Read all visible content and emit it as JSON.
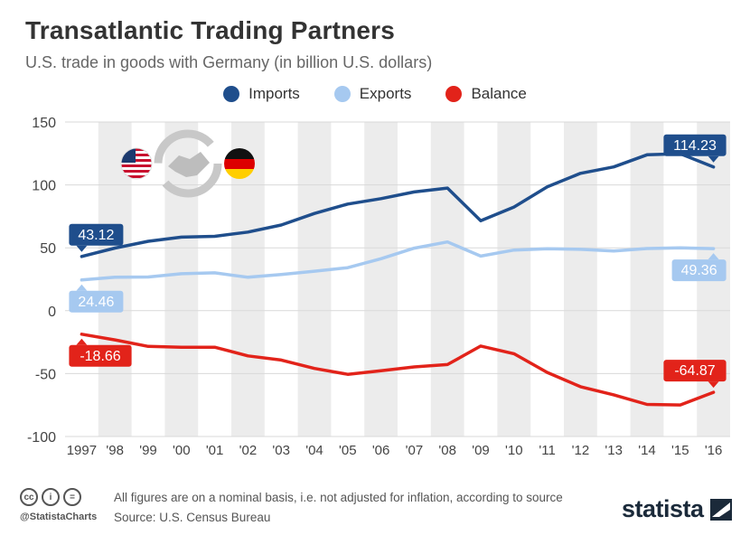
{
  "header": {
    "title": "Transatlantic Trading Partners",
    "subtitle": "U.S. trade in goods with Germany (in billion U.S. dollars)"
  },
  "chart_data": {
    "type": "line",
    "title": "Transatlantic Trading Partners",
    "subtitle": "U.S. trade in goods with Germany (in billion U.S. dollars)",
    "xlabel": "",
    "ylabel": "",
    "categories": [
      "1997",
      "'98",
      "'99",
      "'00",
      "'01",
      "'02",
      "'03",
      "'04",
      "'05",
      "'06",
      "'07",
      "'08",
      "'09",
      "'10",
      "'11",
      "'12",
      "'13",
      "'14",
      "'15",
      "'16"
    ],
    "ylim": [
      -100,
      150
    ],
    "yticks": [
      150,
      100,
      50,
      0,
      -50,
      -100
    ],
    "grid": "alternating vertical bands",
    "legend_position": "top-center",
    "series": [
      {
        "name": "Imports",
        "color": "#1f4e8c",
        "values": [
          43.12,
          49.8,
          55.2,
          58.5,
          59.1,
          62.5,
          68.1,
          77.3,
          84.8,
          89.1,
          94.4,
          97.5,
          71.5,
          82.4,
          98.4,
          109.2,
          114.3,
          123.9,
          124.8,
          114.23
        ],
        "start_label": "43.12",
        "end_label": "114.23"
      },
      {
        "name": "Exports",
        "color": "#a6c9f0",
        "values": [
          24.46,
          26.6,
          26.8,
          29.4,
          30.1,
          26.6,
          28.8,
          31.4,
          34.2,
          41.3,
          49.7,
          54.7,
          43.4,
          48.2,
          49.3,
          48.8,
          47.4,
          49.4,
          49.9,
          49.36
        ],
        "start_label": "24.46",
        "end_label": "49.36"
      },
      {
        "name": "Balance",
        "color": "#e2231a",
        "values": [
          -18.66,
          -23.2,
          -28.4,
          -29.1,
          -29.0,
          -35.9,
          -39.2,
          -45.9,
          -50.6,
          -47.8,
          -44.7,
          -42.8,
          -28.1,
          -34.2,
          -49.1,
          -60.4,
          -66.9,
          -74.5,
          -74.9,
          -64.87
        ],
        "start_label": "-18.66",
        "end_label": "-64.87"
      }
    ]
  },
  "footer": {
    "note": "All figures are on a nominal basis, i.e. not adjusted for inflation, according to source",
    "source": "Source: U.S. Census Bureau",
    "handle": "@StatistaCharts",
    "brand": "statista",
    "cc_icons": [
      "cc",
      "i",
      "="
    ]
  },
  "icons": {
    "flag_left": "us-flag-icon",
    "flag_right": "germany-flag-icon",
    "center": "handshake-icon"
  }
}
